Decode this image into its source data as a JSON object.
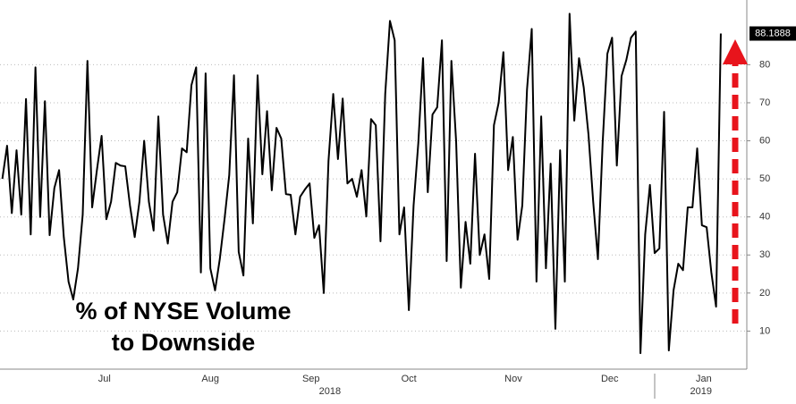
{
  "chart_data": {
    "type": "line",
    "annotation_lines": [
      "% of NYSE Volume",
      "to Downside"
    ],
    "last_value_label": "88.1888",
    "color": "#000000",
    "values": [
      50,
      58.7,
      41,
      57.5,
      40.6,
      71,
      35.4,
      79.3,
      40,
      70.4,
      35.2,
      47.6,
      52.3,
      34.7,
      23,
      18.3,
      26.5,
      40.6,
      81,
      42.5,
      52.3,
      61.3,
      39.4,
      44,
      54.2,
      53.5,
      53.3,
      43,
      34.7,
      44,
      60,
      44,
      36.4,
      66.4,
      40.6,
      33,
      44,
      46.5,
      58,
      57,
      74.6,
      79.3,
      25.4,
      77.7,
      26.5,
      20.7,
      28.9,
      39.4,
      51,
      77.2,
      30.8,
      24.6,
      60.6,
      38.3,
      77.2,
      51.2,
      67.8,
      47,
      63.4,
      60.6,
      46,
      45.8,
      35.4,
      45.3,
      47.2,
      48.8,
      34.5,
      37.8,
      20,
      54.7,
      72.3,
      55.2,
      71.1,
      48.8,
      50,
      45.3,
      52.3,
      40.1,
      65.7,
      64.1,
      33.6,
      72.3,
      91.5,
      86.4,
      35.4,
      42.5,
      15.5,
      43,
      59.4,
      81.7,
      46.5,
      66.9,
      68.8,
      86.4,
      28.4,
      81,
      59.9,
      21.4,
      38.7,
      27.7,
      56.6,
      30,
      35.4,
      23.7,
      64.1,
      70,
      83.3,
      52.3,
      61,
      34,
      43,
      73.5,
      89.4,
      23,
      66.4,
      26.5,
      54,
      10.6,
      57.5,
      23,
      93.4,
      65.3,
      81.7,
      74,
      61.7,
      44,
      28.9,
      59.4,
      82.9,
      87.1,
      53.5,
      77,
      81.2,
      87.1,
      88.7,
      4.2,
      35.4,
      48.4,
      30.5,
      31.7,
      67.6,
      4.9,
      20.7,
      27.7,
      26,
      42.5,
      42.5,
      58,
      37.8,
      37.3,
      25.4,
      16.4,
      88.1888
    ],
    "xlim": [
      -0.5,
      157.5
    ],
    "xticks": [
      {
        "value": 21.6,
        "label": "Jul"
      },
      {
        "value": 44,
        "label": "Aug"
      },
      {
        "value": 65.3,
        "label": "Sep"
      },
      {
        "value": 86,
        "label": "Oct"
      },
      {
        "value": 108.1,
        "label": "Nov"
      },
      {
        "value": 128.5,
        "label": "Dec"
      },
      {
        "value": 148.4,
        "label": "Jan"
      }
    ],
    "year_ticks": [
      {
        "value": 69.3,
        "label": "2018"
      },
      {
        "value": 147.8,
        "label": "2019"
      }
    ],
    "ylim": [
      0,
      97
    ],
    "yticks": [
      10,
      20,
      30,
      40,
      50,
      60,
      70,
      80
    ],
    "grid": true
  }
}
